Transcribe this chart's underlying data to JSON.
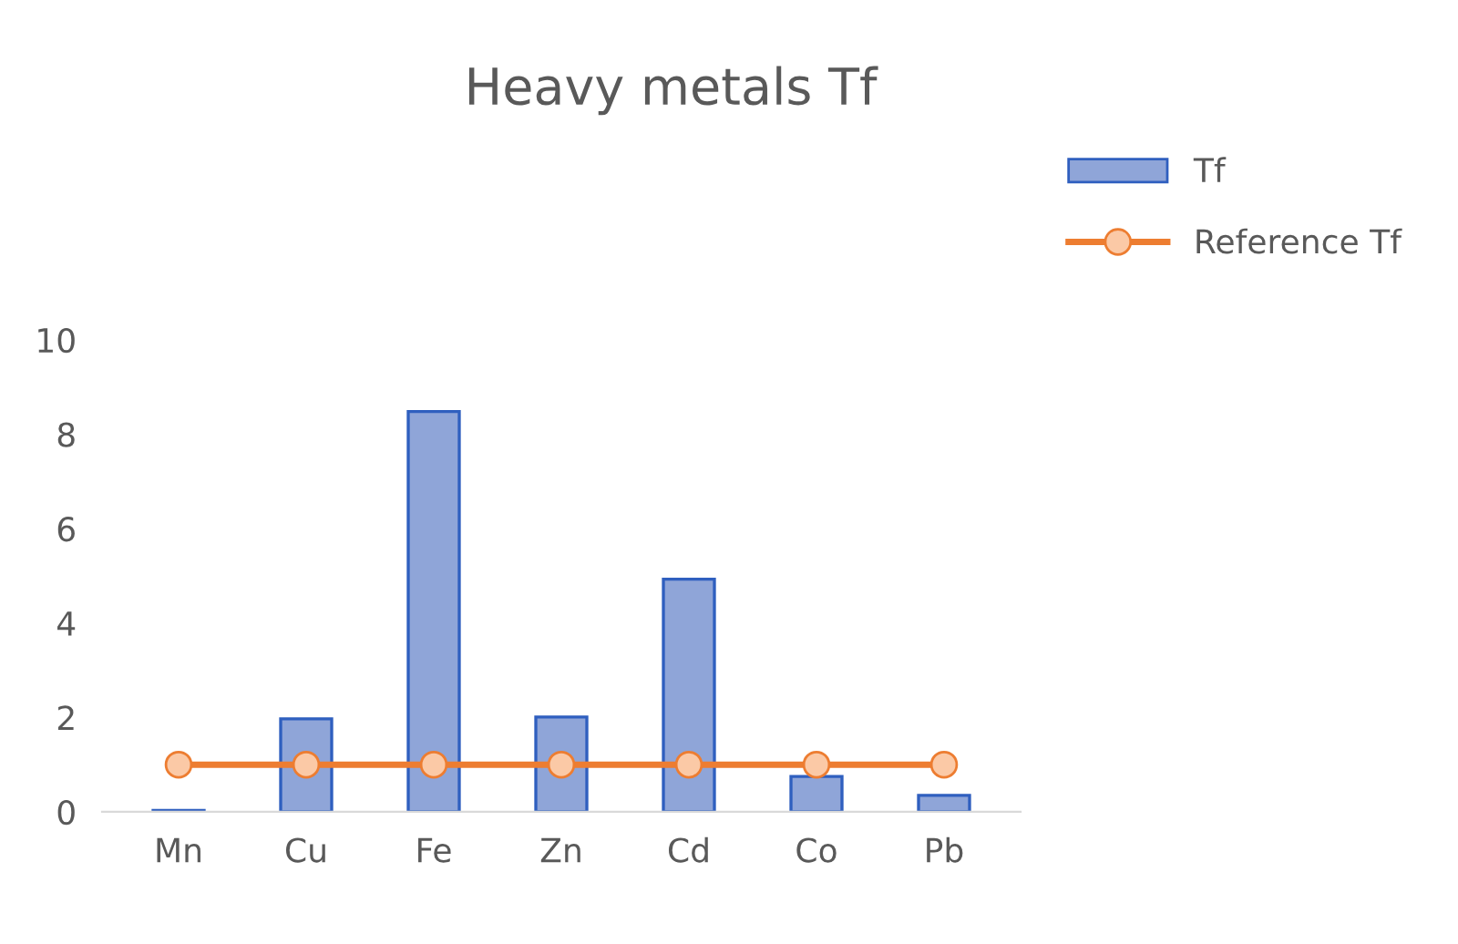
{
  "chart_data": {
    "type": "bar",
    "title": "Heavy metals Tf",
    "categories": [
      "Mn",
      "Cu",
      "Fe",
      "Zn",
      "Cd",
      "Co",
      "Pb"
    ],
    "series": [
      {
        "name": "Tf",
        "color": "#8fa5d8",
        "values": [
          0.03,
          1.97,
          8.48,
          2.01,
          4.93,
          0.75,
          0.35
        ]
      },
      {
        "name": "Reference Tf",
        "type": "line",
        "color": "#ed7d31",
        "marker": "circle",
        "values": [
          1,
          1,
          1,
          1,
          1,
          1,
          1
        ]
      }
    ],
    "ylim": [
      0,
      10
    ],
    "yticks": [
      0,
      2,
      4,
      6,
      8,
      10
    ],
    "grid": false,
    "legend": "right"
  }
}
